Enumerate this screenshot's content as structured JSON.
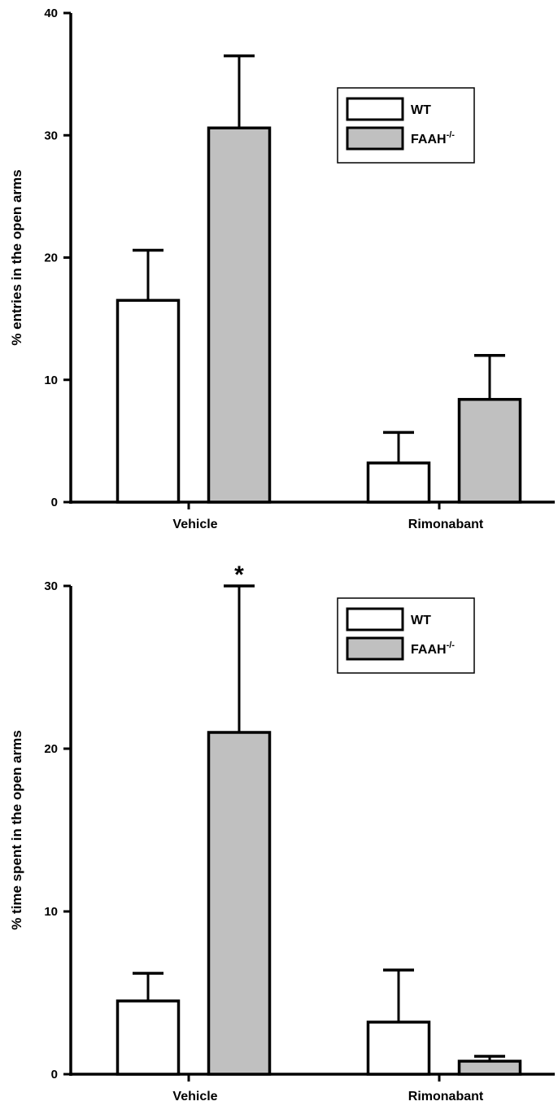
{
  "chart_data": [
    {
      "type": "bar",
      "categories": [
        "Vehicle",
        "Rimonabant"
      ],
      "ylabel": "% entries in the open arms",
      "ylim": [
        0,
        40
      ],
      "yticks": [
        0,
        10,
        20,
        30,
        40
      ],
      "series": [
        {
          "name": "WT",
          "values": [
            16.5,
            3.2
          ],
          "errors": [
            4.1,
            2.5
          ],
          "color": "#ffffff"
        },
        {
          "name": "FAAH-/-",
          "values": [
            30.6,
            8.4
          ],
          "errors": [
            5.9,
            3.6
          ],
          "color": "#c0c0c0"
        }
      ],
      "annotations": [],
      "legend": "top-right",
      "grid": false
    },
    {
      "type": "bar",
      "categories": [
        "Vehicle",
        "Rimonabant"
      ],
      "ylabel": "% time spent in the open arms",
      "ylim": [
        0,
        30
      ],
      "yticks": [
        0,
        10,
        20,
        30
      ],
      "series": [
        {
          "name": "WT",
          "values": [
            4.5,
            3.2
          ],
          "errors": [
            1.7,
            3.2
          ],
          "color": "#ffffff"
        },
        {
          "name": "FAAH-/-",
          "values": [
            21.0,
            0.8
          ],
          "errors": [
            9.0,
            0.3
          ],
          "color": "#c0c0c0"
        }
      ],
      "annotations": [
        {
          "text": "*",
          "category": "Vehicle",
          "series": "FAAH-/-"
        }
      ],
      "legend": "top-right",
      "grid": false
    }
  ]
}
